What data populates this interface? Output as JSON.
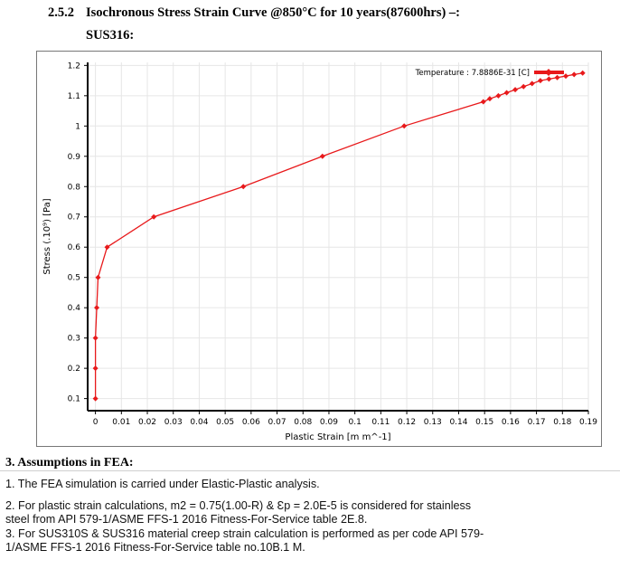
{
  "heading": {
    "number": "2.5.2",
    "title": "Isochronous Stress Strain Curve @850°C for 10 years(87600hrs) –:",
    "title2": "SUS316:"
  },
  "chart_data": {
    "type": "line",
    "xlabel": "Plastic Strain  [m m^-1]",
    "ylabel": "Stress  (.10⁹) [Pa]",
    "xlim": [
      -0.003,
      0.19
    ],
    "ylim": [
      0.06,
      1.21
    ],
    "x_ticks": [
      "0",
      "0.01",
      "0.02",
      "0.03",
      "0.04",
      "0.05",
      "0.06",
      "0.07",
      "0.08",
      "0.09",
      "0.1",
      "0.11",
      "0.12",
      "0.13",
      "0.14",
      "0.15",
      "0.16",
      "0.17",
      "0.18",
      "0.19"
    ],
    "y_ticks": [
      "0.1",
      "0.2",
      "0.3",
      "0.4",
      "0.5",
      "0.6",
      "0.7",
      "0.8",
      "0.9",
      "1",
      "1.1",
      "1.2"
    ],
    "grid": true,
    "legend_placement": "top-right",
    "series": [
      {
        "name": "Temperature : 7.8886E-31 [C]",
        "color": "#e8191b",
        "x": [
          0.0,
          0.0,
          0.0,
          0.0005,
          0.001,
          0.0045,
          0.0225,
          0.057,
          0.0875,
          0.119,
          0.1495,
          0.152,
          0.1553,
          0.1585,
          0.1618,
          0.165,
          0.1683,
          0.1715,
          0.1748,
          0.178,
          0.1813,
          0.1845,
          0.1878
        ],
        "y": [
          0.1,
          0.2,
          0.3,
          0.4,
          0.5,
          0.6,
          0.7,
          0.8,
          0.9,
          1.0,
          1.08,
          1.09,
          1.1,
          1.11,
          1.12,
          1.13,
          1.14,
          1.15,
          1.155,
          1.16,
          1.165,
          1.17,
          1.175
        ]
      }
    ]
  },
  "assumptions": {
    "title": "3. Assumptions in FEA:",
    "item1": "1. The FEA simulation is carried under Elastic-Plastic analysis.",
    "item2a": "2. For plastic strain calculations, m2 = 0.75(1.00-R) & Ɛp = 2.0E-5 is considered for stainless",
    "item2b": "steel from API 579-1/ASME FFS-1 2016 Fitness-For-Service table 2E.8.",
    "item3a": "3. For SUS310S & SUS316 material creep strain calculation is performed as per code API 579-",
    "item3b": "1/ASME FFS-1 2016 Fitness-For-Service table no.10B.1 M."
  }
}
